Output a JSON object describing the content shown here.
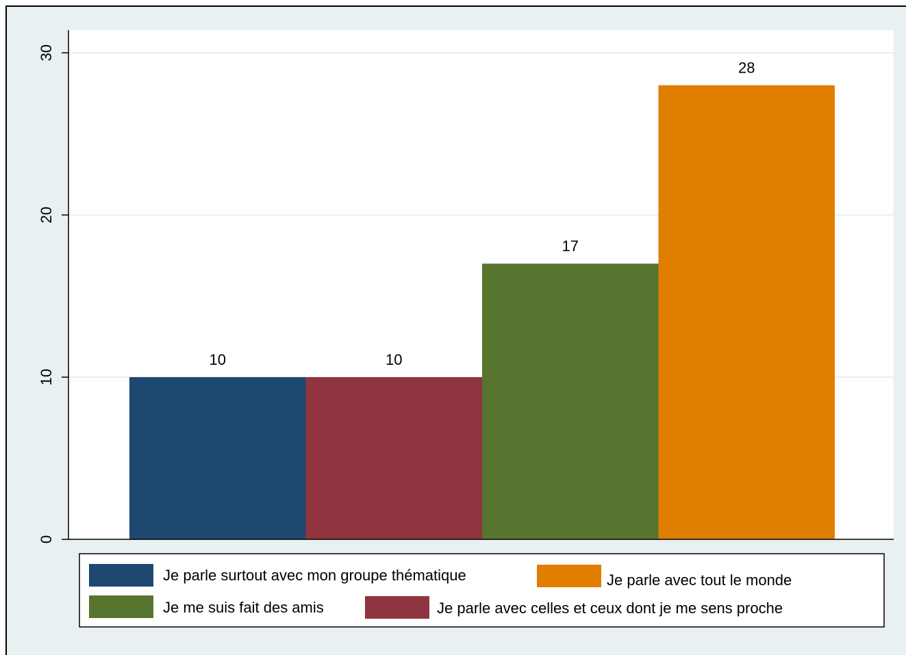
{
  "chart_data": {
    "type": "bar",
    "title": "",
    "xlabel": "",
    "ylabel": "",
    "ylim": [
      0,
      30
    ],
    "yticks": [
      0,
      10,
      20,
      30
    ],
    "grid": true,
    "legend_position": "bottom",
    "series": [
      {
        "name": "Je parle surtout avec mon groupe thématique",
        "value": 10,
        "color": "#1d4870"
      },
      {
        "name": "Je parle avec celles et ceux dont je me sens proche",
        "value": 10,
        "color": "#903540"
      },
      {
        "name": "Je me suis fait des amis",
        "value": 17,
        "color": "#57752f"
      },
      {
        "name": "Je parle avec tout le monde",
        "value": 28,
        "color": "#e07e00"
      }
    ],
    "legend_order": [
      0,
      3,
      2,
      1
    ],
    "colors": {
      "background": "#e9f0f2",
      "plot_background": "#ffffff",
      "grid": "#e9f0f2"
    }
  }
}
